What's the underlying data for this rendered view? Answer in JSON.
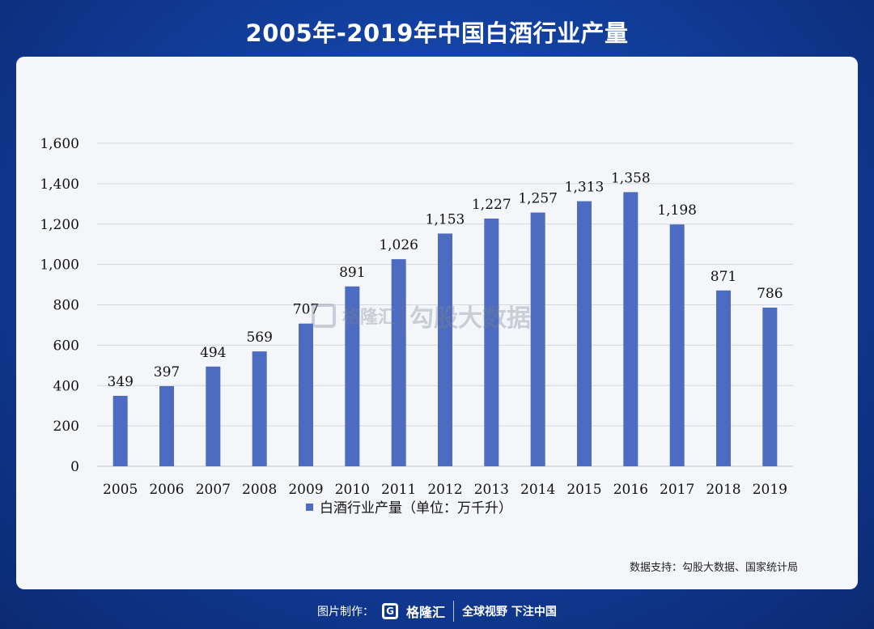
{
  "header": {
    "title": "2005年-2019年中国白酒行业产量"
  },
  "chart_data": {
    "type": "bar",
    "categories": [
      "2005",
      "2006",
      "2007",
      "2008",
      "2009",
      "2010",
      "2011",
      "2012",
      "2013",
      "2014",
      "2015",
      "2016",
      "2017",
      "2018",
      "2019"
    ],
    "series": [
      {
        "name": "白酒行业产量（单位：万千升）",
        "values": [
          349,
          397,
          494,
          569,
          707,
          891,
          1026,
          1153,
          1227,
          1257,
          1313,
          1358,
          1198,
          871,
          786
        ],
        "labels": [
          "349",
          "397",
          "494",
          "569",
          "707",
          "891",
          "1,026",
          "1,153",
          "1,227",
          "1,257",
          "1,313",
          "1,358",
          "1,198",
          "871",
          "786"
        ]
      }
    ],
    "y_ticks": [
      "0",
      "200",
      "400",
      "600",
      "800",
      "1,000",
      "1,200",
      "1,400",
      "1,600"
    ],
    "ylim": [
      0,
      1600
    ],
    "grid": true,
    "legend": "bottom",
    "bar_color": "#4d6cc1"
  },
  "watermark": {
    "brand": "格隆汇",
    "text": "勾股大数据"
  },
  "source": "数据支持：勾股大数据、国家统计局",
  "footer": {
    "label": "图片制作：",
    "logo_letter": "G",
    "brand": "格隆汇",
    "slogan": "全球视野 下注中国"
  }
}
